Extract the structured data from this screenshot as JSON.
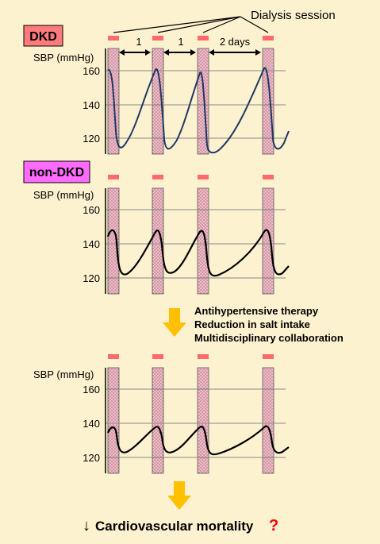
{
  "header": {
    "dialysis_session_label": "Dialysis session"
  },
  "panels": [
    {
      "id": "dkd",
      "tag": "DKD",
      "tag_color": "#ff7a7a",
      "ylabel": "SBP (mmHg)",
      "ticks": [
        "160",
        "140",
        "120"
      ],
      "intervals": [
        "1",
        "1",
        "2 days"
      ],
      "curve_color": "#1f3864"
    },
    {
      "id": "non-dkd",
      "tag": "non-DKD",
      "tag_color": "#ff6bff",
      "ylabel": "SBP (mmHg)",
      "ticks": [
        "160",
        "140",
        "120"
      ],
      "curve_color": "#000000"
    },
    {
      "id": "after",
      "ylabel": "SBP (mmHg)",
      "ticks": [
        "160",
        "140",
        "120"
      ],
      "curve_color": "#000000"
    }
  ],
  "interventions": [
    "Antihypertensive therapy",
    "Reduction in salt intake",
    "Multidisciplinary collaboration"
  ],
  "outcome": {
    "arrow_glyph": "↓",
    "label": "Cardiovascular mortality",
    "question_mark": "?",
    "question_color": "#ff0000"
  },
  "colors": {
    "background": "#fdf2cf",
    "session_marker": "#ff6b6b",
    "band_fill": "#f7b8c8",
    "arrow": "#ffc000",
    "grid": "#888888"
  }
}
